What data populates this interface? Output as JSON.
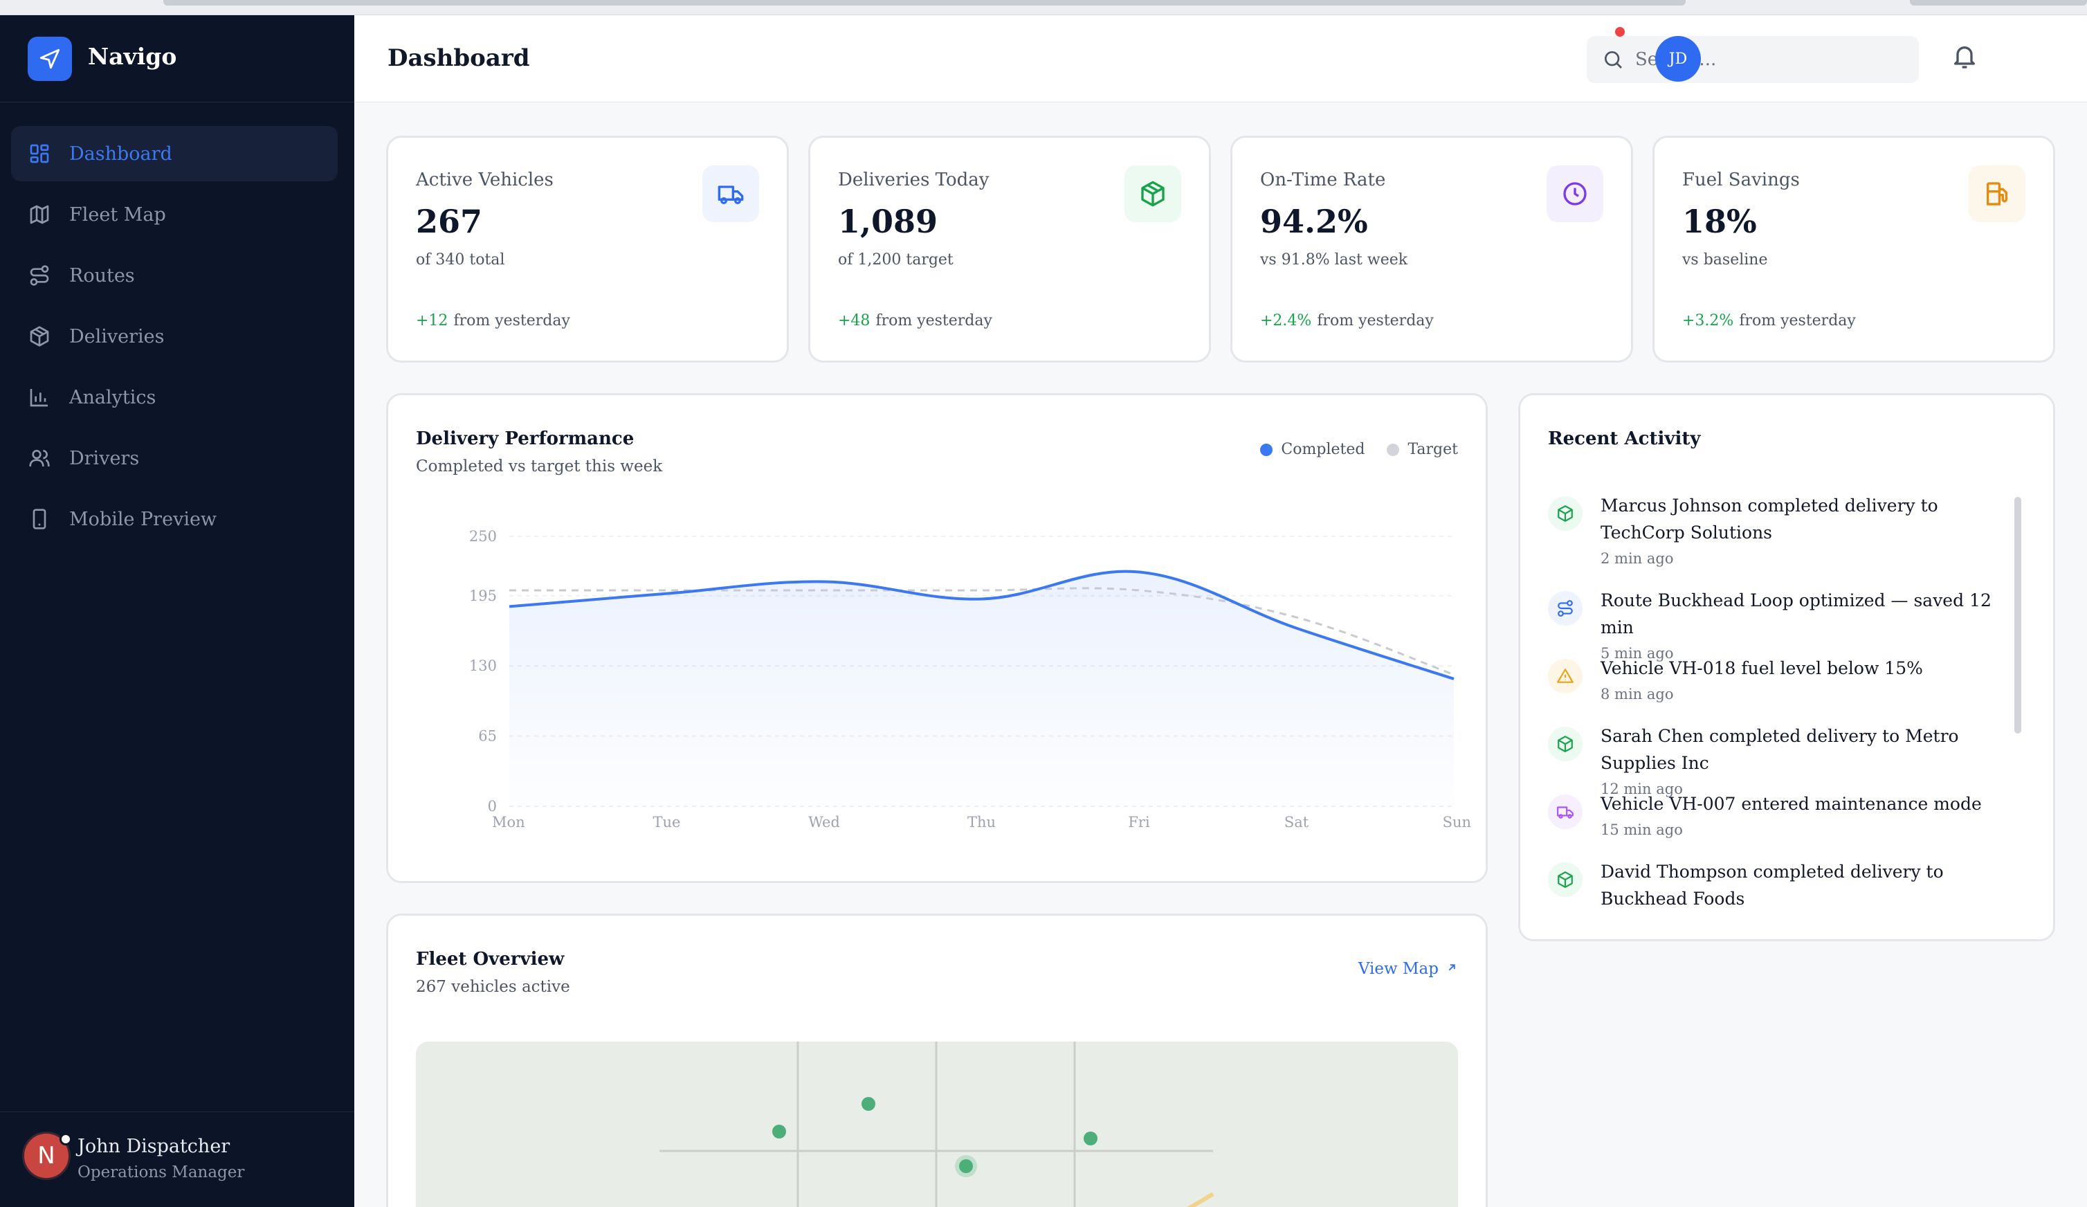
{
  "app": {
    "name": "Navigo"
  },
  "sidebar": {
    "items": [
      {
        "label": "Dashboard",
        "icon": "dashboard-icon",
        "active": true
      },
      {
        "label": "Fleet Map",
        "icon": "map-icon",
        "active": false
      },
      {
        "label": "Routes",
        "icon": "route-icon",
        "active": false
      },
      {
        "label": "Deliveries",
        "icon": "package-icon",
        "active": false
      },
      {
        "label": "Analytics",
        "icon": "bar-chart-icon",
        "active": false
      },
      {
        "label": "Drivers",
        "icon": "users-icon",
        "active": false
      },
      {
        "label": "Mobile Preview",
        "icon": "phone-icon",
        "active": false
      }
    ],
    "user": {
      "initial": "N",
      "name": "John Dispatcher",
      "role": "Operations Manager"
    }
  },
  "header": {
    "title": "Dashboard",
    "search_placeholder": "Search...",
    "avatar_initials": "JD"
  },
  "stats": [
    {
      "label": "Active Vehicles",
      "value": "267",
      "sub": "of 340 total",
      "delta": "+12",
      "delta_suffix": "from yesterday",
      "icon": "truck-icon",
      "color": "#2f6bf0",
      "bg": "#eef3fe"
    },
    {
      "label": "Deliveries Today",
      "value": "1,089",
      "sub": "of 1,200 target",
      "delta": "+48",
      "delta_suffix": "from yesterday",
      "icon": "package-icon",
      "color": "#16a34a",
      "bg": "#ecfaf1"
    },
    {
      "label": "On-Time Rate",
      "value": "94.2%",
      "sub": "vs 91.8% last week",
      "delta": "+2.4%",
      "delta_suffix": "from yesterday",
      "icon": "clock-icon",
      "color": "#7c3aed",
      "bg": "#f4effd"
    },
    {
      "label": "Fuel Savings",
      "value": "18%",
      "sub": "vs baseline",
      "delta": "+3.2%",
      "delta_suffix": "from yesterday",
      "icon": "fuel-icon",
      "color": "#ea8a0c",
      "bg": "#fdf6ea"
    }
  ],
  "performance": {
    "title": "Delivery Performance",
    "subtitle": "Completed vs target this week",
    "legend": [
      "Completed",
      "Target"
    ]
  },
  "chart_data": {
    "type": "area",
    "categories": [
      "Mon",
      "Tue",
      "Wed",
      "Thu",
      "Fri",
      "Sat",
      "Sun"
    ],
    "series": [
      {
        "name": "Completed",
        "values": [
          185,
          197,
          208,
          192,
          217,
          165,
          118
        ],
        "color": "#3b78f2"
      },
      {
        "name": "Target",
        "values": [
          200,
          200,
          200,
          200,
          200,
          175,
          122
        ],
        "color": "#c7cbd1"
      }
    ],
    "yticks": [
      0,
      65,
      130,
      195,
      250
    ],
    "ylim": [
      0,
      250
    ],
    "grid": true
  },
  "activity": {
    "title": "Recent Activity",
    "items": [
      {
        "text": "Marcus Johnson completed delivery to TechCorp Solutions",
        "time": "2 min ago",
        "icon": "package-icon",
        "color": "#16a34a",
        "bg": "#ecfaf1"
      },
      {
        "text": "Route Buckhead Loop optimized — saved 12 min",
        "time": "5 min ago",
        "icon": "route-icon",
        "color": "#2f6bf0",
        "bg": "#eef3fe"
      },
      {
        "text": "Vehicle VH-018 fuel level below 15%",
        "time": "8 min ago",
        "icon": "warning-icon",
        "color": "#e8a317",
        "bg": "#fdf6e6"
      },
      {
        "text": "Sarah Chen completed delivery to Metro Supplies Inc",
        "time": "12 min ago",
        "icon": "package-icon",
        "color": "#16a34a",
        "bg": "#ecfaf1"
      },
      {
        "text": "Vehicle VH-007 entered maintenance mode",
        "time": "15 min ago",
        "icon": "truck-icon",
        "color": "#a855f7",
        "bg": "#f6effd"
      },
      {
        "text": "David Thompson completed delivery to Buckhead Foods",
        "time": "",
        "icon": "package-icon",
        "color": "#16a34a",
        "bg": "#ecfaf1"
      }
    ]
  },
  "fleet": {
    "title": "Fleet Overview",
    "subtitle": "267 vehicles active",
    "view_map_label": "View Map"
  }
}
